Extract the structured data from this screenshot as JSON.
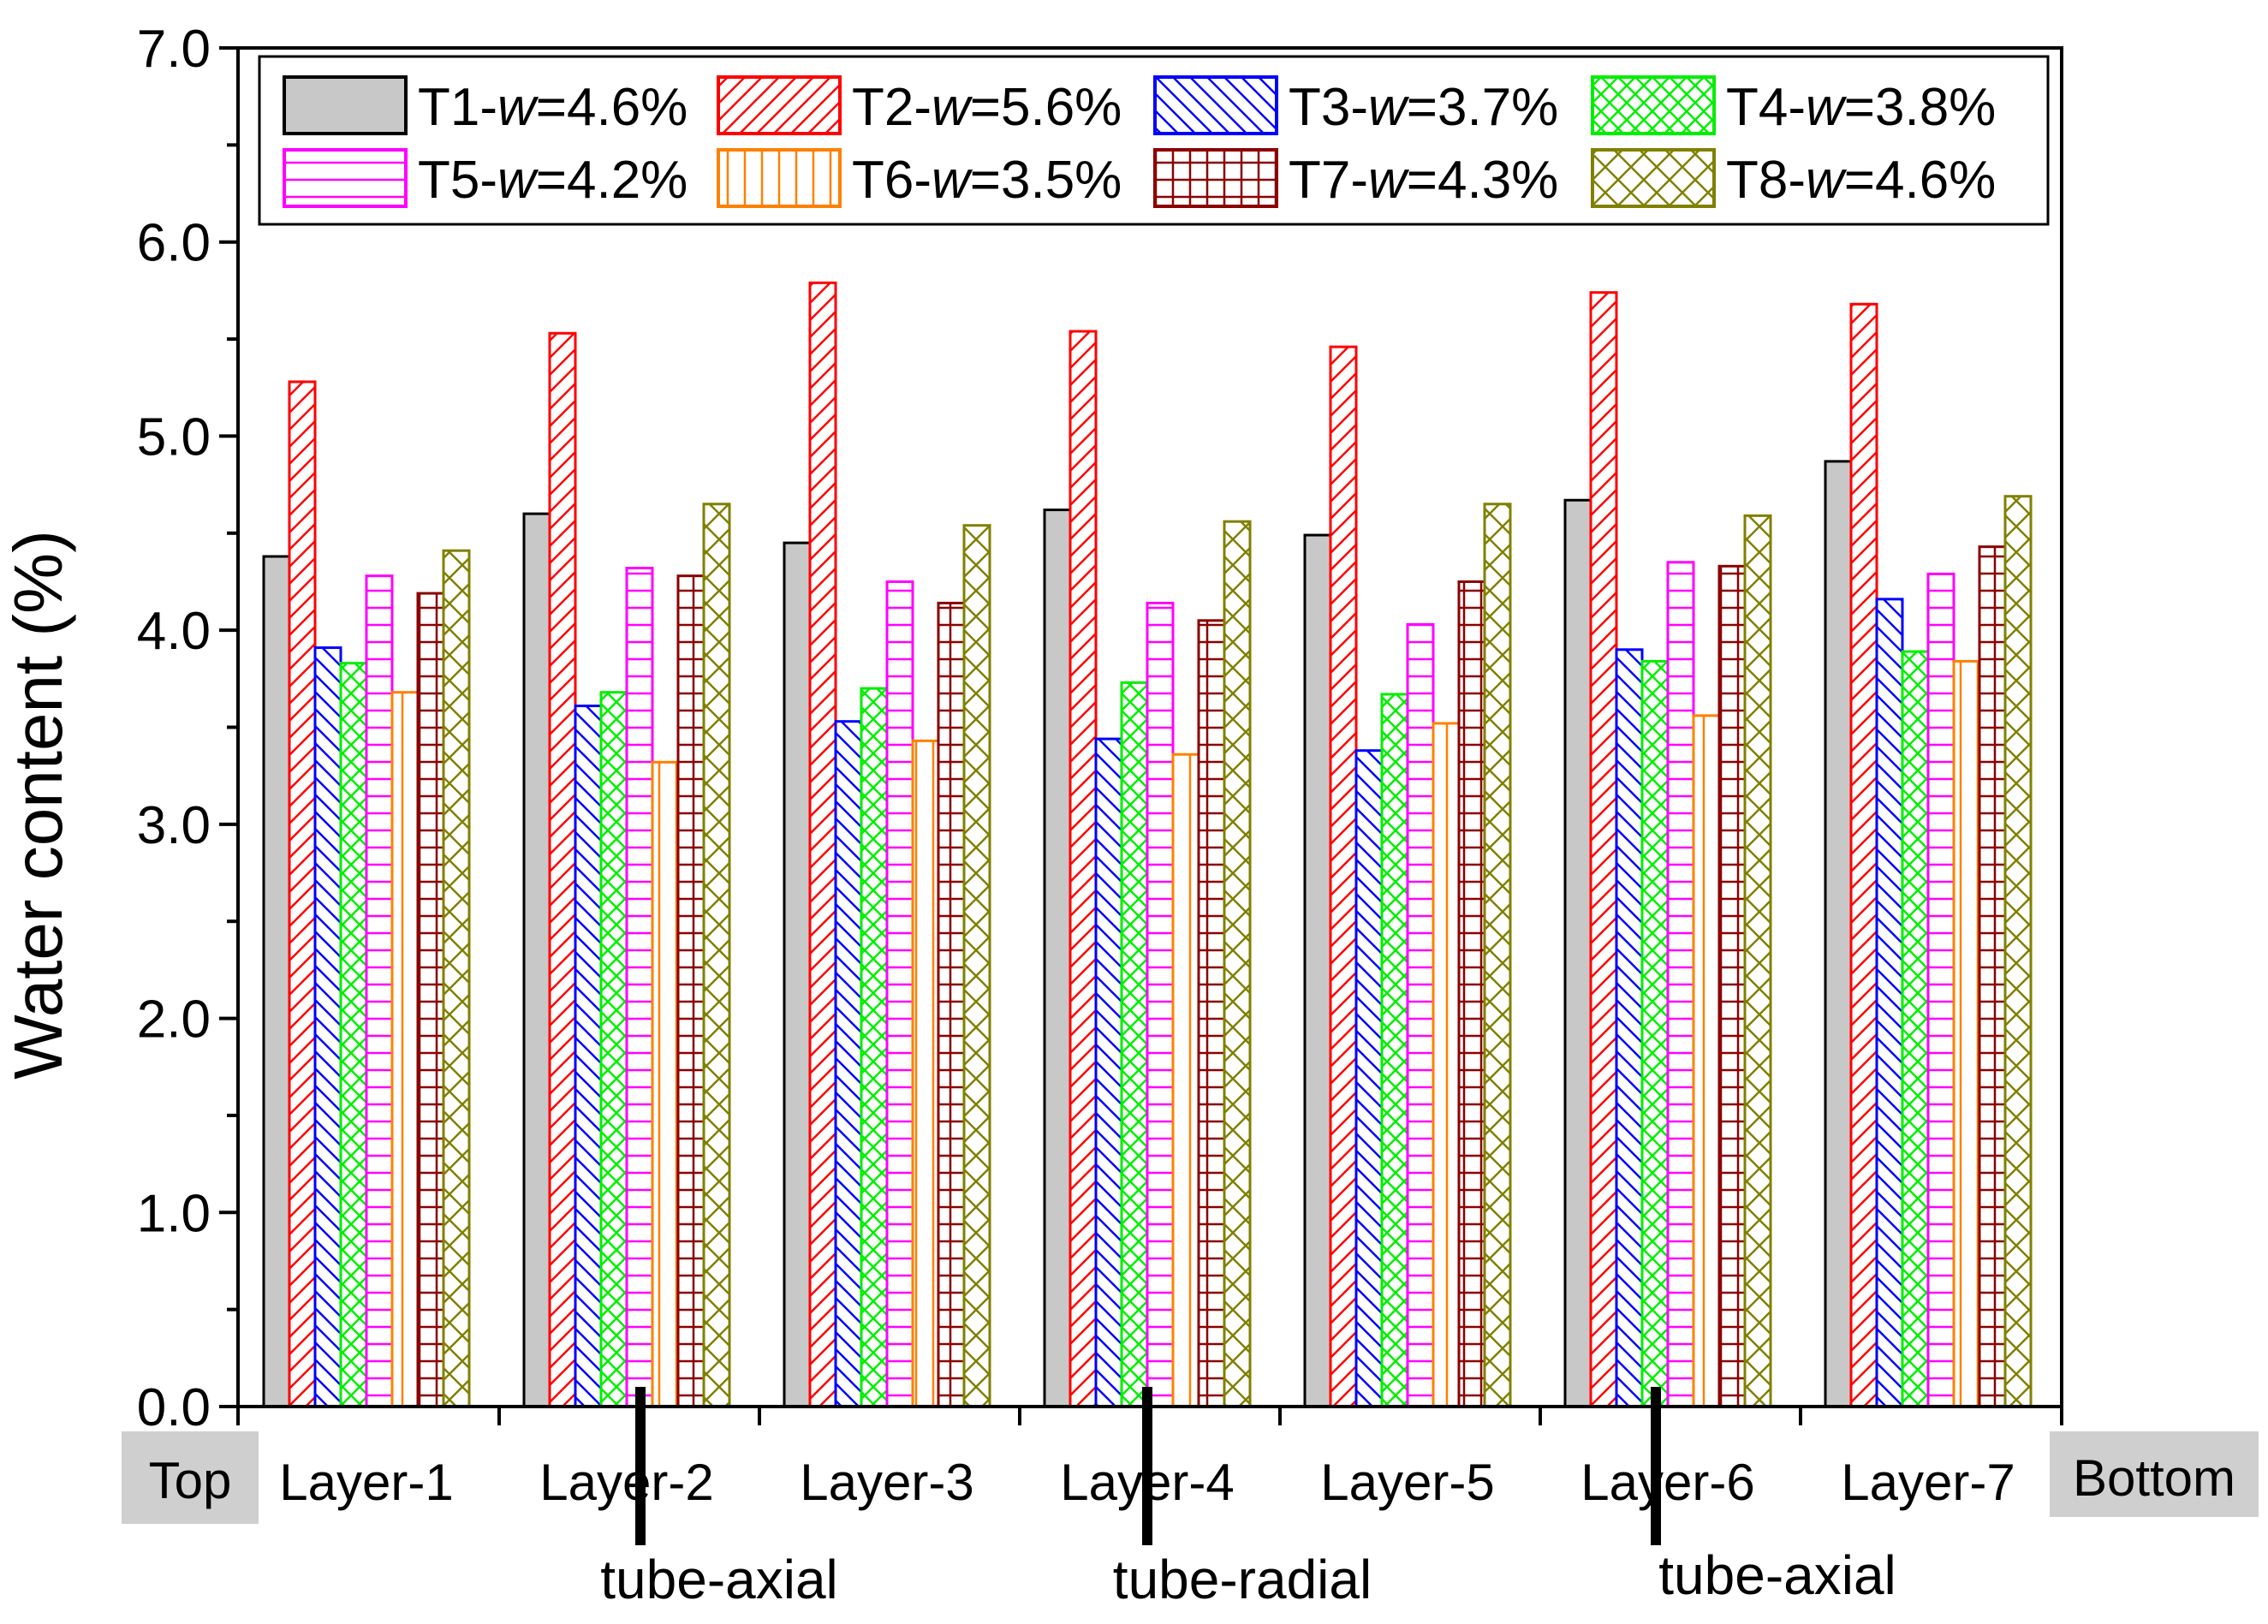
{
  "chart_data": {
    "type": "bar",
    "ylabel": "Water content (%)",
    "ylim": [
      0,
      7
    ],
    "yticks": [
      "0.0",
      "1.0",
      "2.0",
      "3.0",
      "4.0",
      "5.0",
      "6.0",
      "7.0"
    ],
    "categories": [
      "Layer-1",
      "Layer-2",
      "Layer-3",
      "Layer-4",
      "Layer-5",
      "Layer-6",
      "Layer-7"
    ],
    "end_labels": {
      "left": "Top",
      "right": "Bottom"
    },
    "legend_position": "top",
    "series": [
      {
        "name": "T1",
        "w": "4.6%",
        "color": "#000000",
        "fill": "#c8c8c8",
        "pattern": "solid",
        "values": [
          4.38,
          4.6,
          4.45,
          4.62,
          4.49,
          4.67,
          4.87
        ]
      },
      {
        "name": "T2",
        "w": "5.6%",
        "color": "#ff0000",
        "fill": "#ffffff",
        "pattern": "diag-right",
        "values": [
          5.28,
          5.53,
          5.79,
          5.54,
          5.46,
          5.74,
          5.68
        ]
      },
      {
        "name": "T3",
        "w": "3.7%",
        "color": "#0000ff",
        "fill": "#ffffff",
        "pattern": "diag-left",
        "values": [
          3.91,
          3.61,
          3.53,
          3.44,
          3.38,
          3.9,
          4.16
        ]
      },
      {
        "name": "T4",
        "w": "3.8%",
        "color": "#00ee00",
        "fill": "#ffffff",
        "pattern": "cross-diag",
        "values": [
          3.83,
          3.68,
          3.7,
          3.73,
          3.67,
          3.84,
          3.89
        ]
      },
      {
        "name": "T5",
        "w": "4.2%",
        "color": "#ff00ff",
        "fill": "#ffffff",
        "pattern": "horizontal",
        "values": [
          4.28,
          4.32,
          4.25,
          4.14,
          4.03,
          4.35,
          4.29
        ]
      },
      {
        "name": "T6",
        "w": "3.5%",
        "color": "#ff8000",
        "fill": "#ffffff",
        "pattern": "vertical",
        "values": [
          3.68,
          3.32,
          3.43,
          3.36,
          3.52,
          3.56,
          3.84
        ]
      },
      {
        "name": "T7",
        "w": "4.3%",
        "color": "#8b0000",
        "fill": "#ffffff",
        "pattern": "grid",
        "values": [
          4.19,
          4.28,
          4.14,
          4.05,
          4.25,
          4.33,
          4.43
        ]
      },
      {
        "name": "T8",
        "w": "4.6%",
        "color": "#808000",
        "fill": "#ffffff",
        "pattern": "cross-diag-wide",
        "values": [
          4.41,
          4.65,
          4.54,
          4.56,
          4.65,
          4.59,
          4.69
        ]
      }
    ],
    "annotations": [
      "tube-axial",
      "tube-radial",
      "tube-axial"
    ]
  }
}
